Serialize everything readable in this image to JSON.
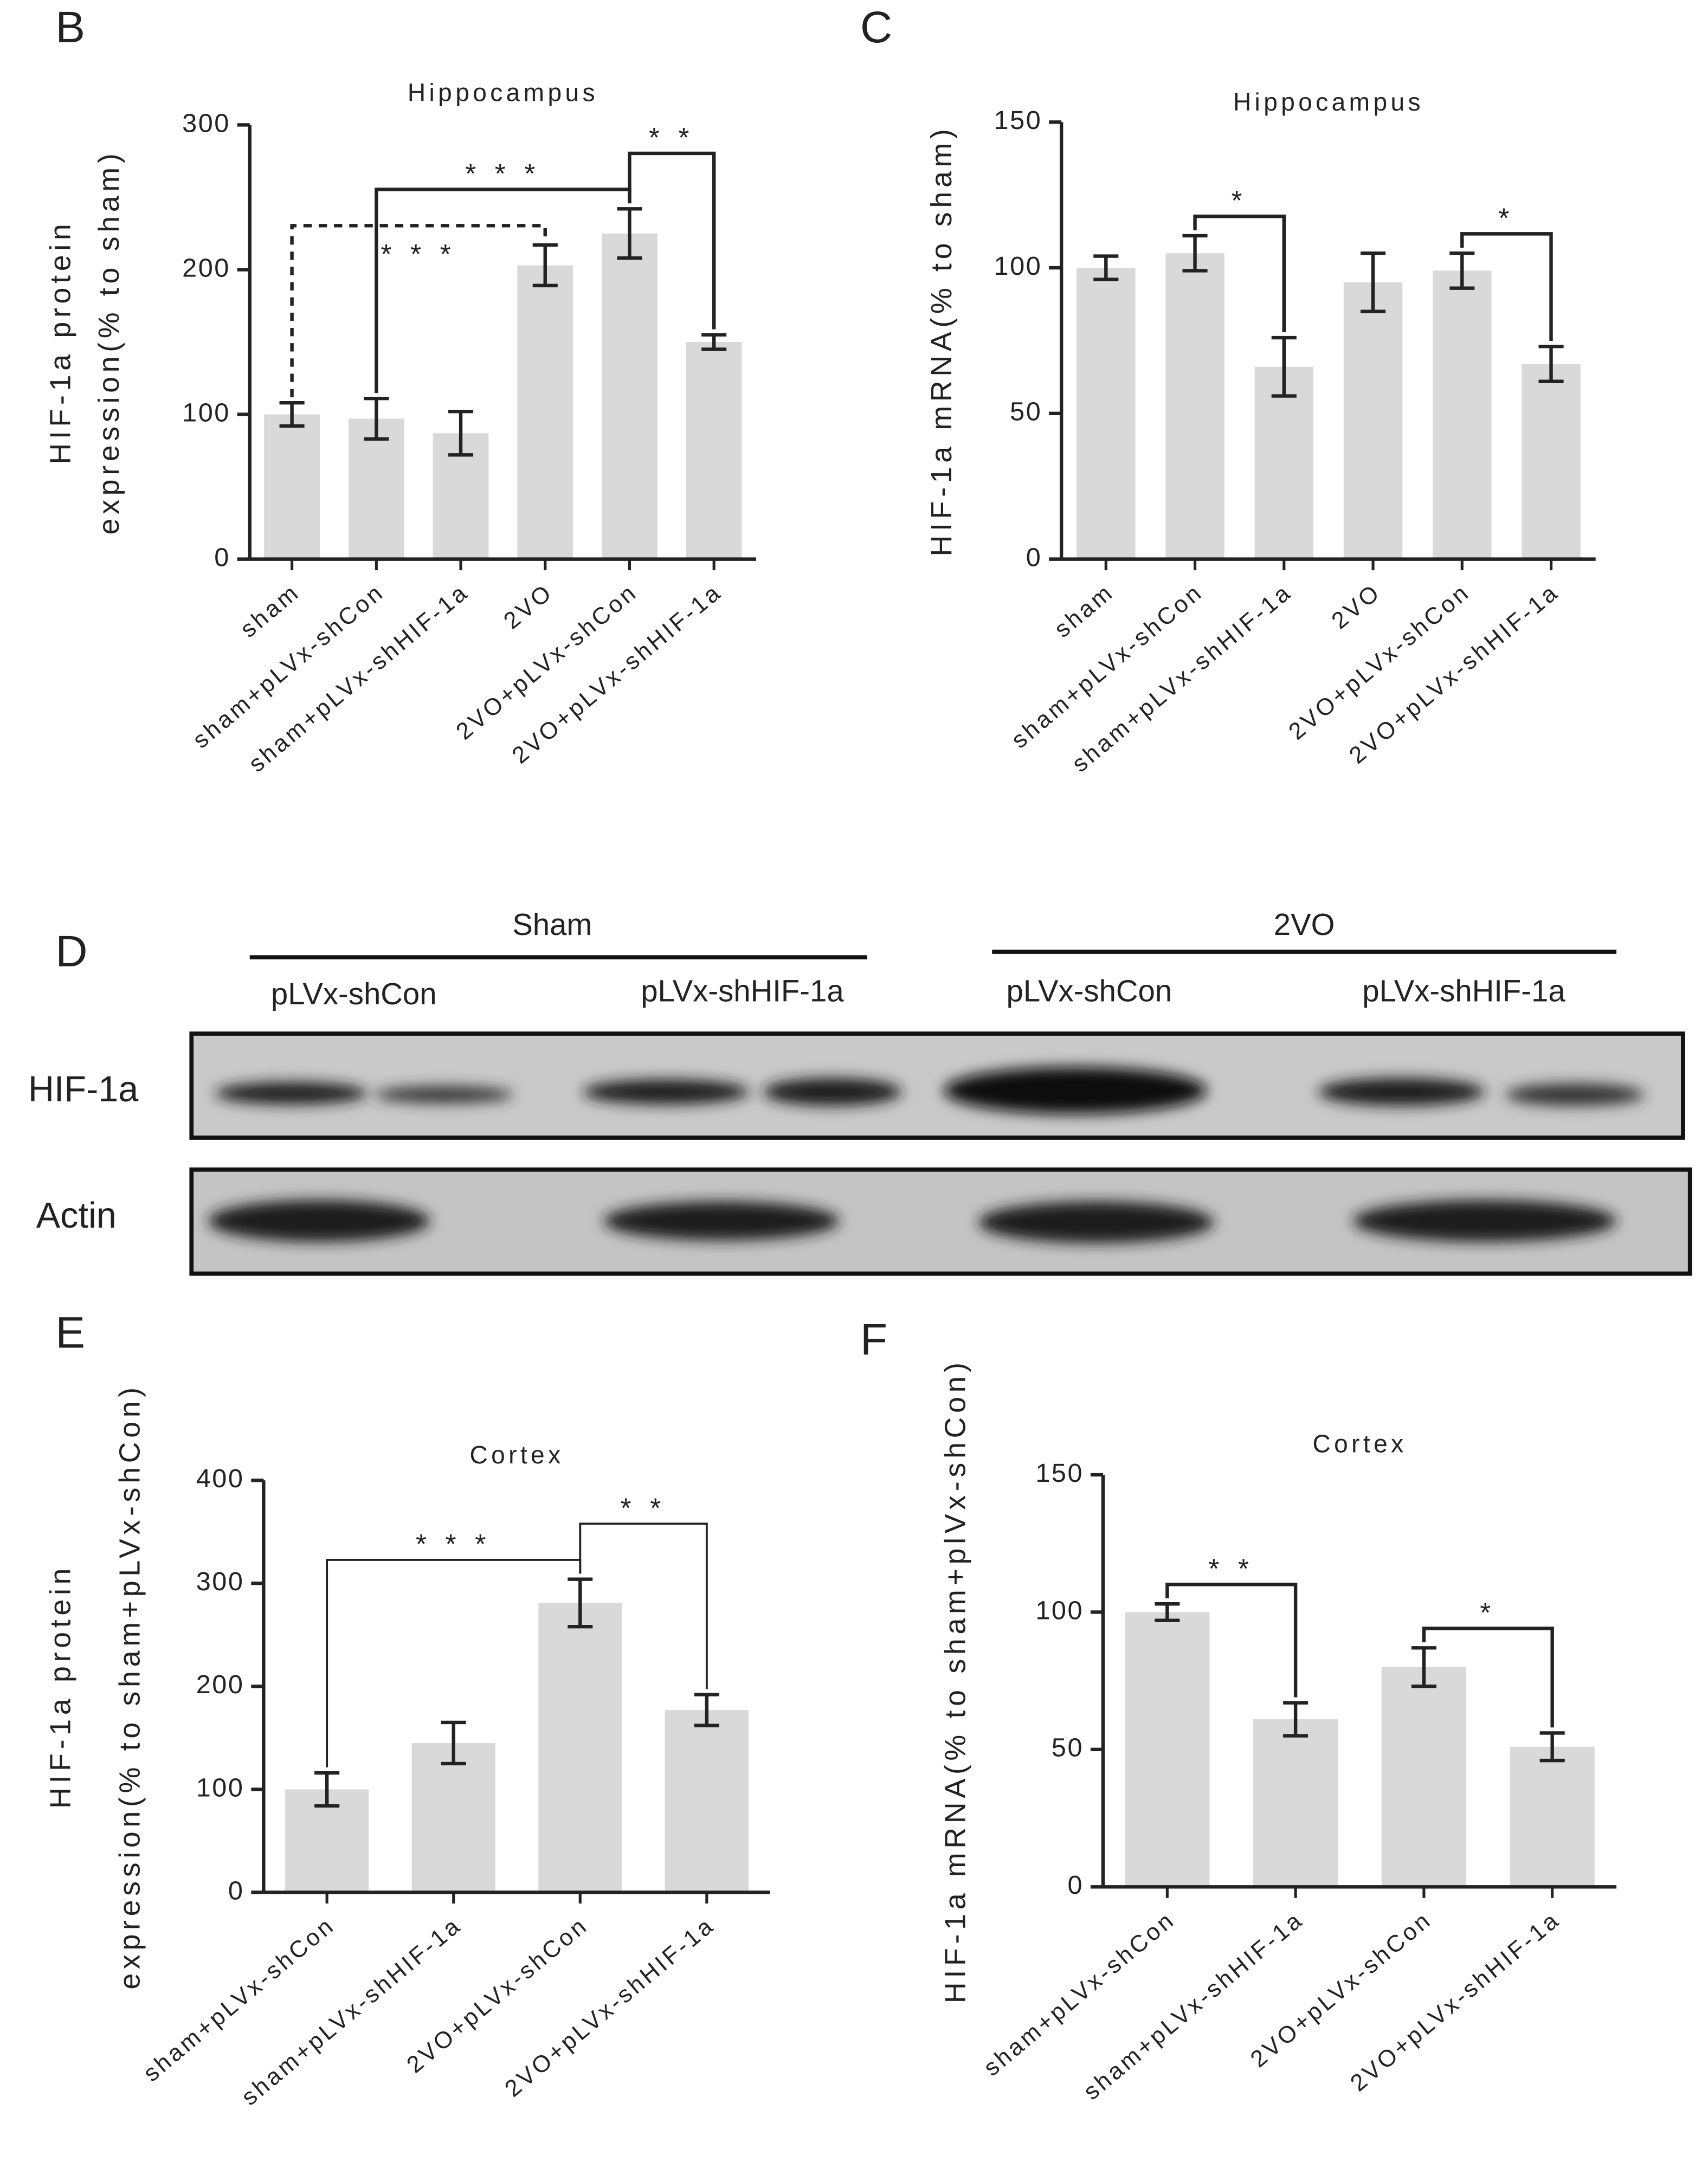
{
  "chart_data": [
    {
      "panel": "B",
      "type": "bar",
      "title": "Hippocampus",
      "ylabel": [
        "HIF-1a protein",
        "expression(% to sham)"
      ],
      "categories": [
        "sham",
        "sham+pLVx-shCon",
        "sham+pLVx-shHIF-1a",
        "2VO",
        "2VO+pLVx-shCon",
        "2VO+pLVx-shHIF-1a"
      ],
      "values": [
        100,
        97,
        87,
        203,
        225,
        150
      ],
      "errors": [
        8,
        14,
        15,
        14,
        17,
        5
      ],
      "ylim": [
        0,
        300
      ],
      "yticks": [
        0,
        100,
        200,
        300
      ],
      "color": "#d9d9d9",
      "annotations": [
        {
          "between": [
            0,
            3
          ],
          "text": "* * *",
          "style": "dashed",
          "label": "below"
        },
        {
          "between": [
            1,
            4
          ],
          "text": "* * *",
          "style": "solid",
          "label": "above"
        },
        {
          "between": [
            4,
            5
          ],
          "text": "* *",
          "style": "solid",
          "label": "above"
        }
      ]
    },
    {
      "panel": "C",
      "type": "bar",
      "title": "Hippocampus",
      "ylabel": [
        "HIF-1a mRNA(% to sham)"
      ],
      "categories": [
        "sham",
        "sham+pLVx-shCon",
        "sham+pLVx-shHIF-1a",
        "2VO",
        "2VO+pLVx-shCon",
        "2VO+pLVx-shHIF-1a"
      ],
      "values": [
        100,
        105,
        66,
        95,
        99,
        67
      ],
      "errors": [
        4,
        6,
        10,
        10,
        6,
        6
      ],
      "ylim": [
        0,
        150
      ],
      "yticks": [
        0,
        50,
        100,
        150
      ],
      "color": "#d9d9d9",
      "annotations": [
        {
          "between": [
            1,
            2
          ],
          "text": "*",
          "style": "solid",
          "label": "above"
        },
        {
          "between": [
            4,
            5
          ],
          "text": "*",
          "style": "solid",
          "label": "above"
        }
      ]
    },
    {
      "panel": "E",
      "type": "bar",
      "title": "Cortex",
      "ylabel": [
        "HIF-1a protein",
        "expression(% to sham+pLVx-shCon)"
      ],
      "categories": [
        "sham+pLVx-shCon",
        "sham+pLVx-shHIF-1a",
        "2VO+pLVx-shCon",
        "2VO+pLVx-shHIF-1a"
      ],
      "values": [
        100,
        145,
        281,
        177
      ],
      "errors": [
        16,
        20,
        23,
        15
      ],
      "ylim": [
        0,
        400
      ],
      "yticks": [
        0,
        100,
        200,
        300,
        400
      ],
      "color": "#d9d9d9",
      "annotations": [
        {
          "between": [
            0,
            2
          ],
          "text": "* * *",
          "style": "thin",
          "label": "above"
        },
        {
          "between": [
            2,
            3
          ],
          "text": "* *",
          "style": "thin",
          "label": "above"
        }
      ]
    },
    {
      "panel": "F",
      "type": "bar",
      "title": "Cortex",
      "ylabel": [
        "HIF-1a mRNA(% to sham+plVx-shCon)"
      ],
      "categories": [
        "sham+pLVx-shCon",
        "sham+pLVx-shHIF-1a",
        "2VO+pLVx-shCon",
        "2VO+pLVx-shHIF-1a"
      ],
      "values": [
        100,
        61,
        80,
        51
      ],
      "errors": [
        3,
        6,
        7,
        5
      ],
      "ylim": [
        0,
        150
      ],
      "yticks": [
        0,
        50,
        100,
        150
      ],
      "color": "#d9d9d9",
      "annotations": [
        {
          "between": [
            0,
            1
          ],
          "text": "* *",
          "style": "solid",
          "label": "above"
        },
        {
          "between": [
            2,
            3
          ],
          "text": "*",
          "style": "solid",
          "label": "above"
        }
      ]
    }
  ],
  "blot": {
    "panel": "D",
    "groups": [
      "Sham",
      "2VO"
    ],
    "lanes": [
      "pLVx-shCon",
      "pLVx-shHIF-1a",
      "pLVx-shCon",
      "pLVx-shHIF-1a"
    ],
    "rows": [
      "HIF-1a",
      "Actin"
    ]
  }
}
